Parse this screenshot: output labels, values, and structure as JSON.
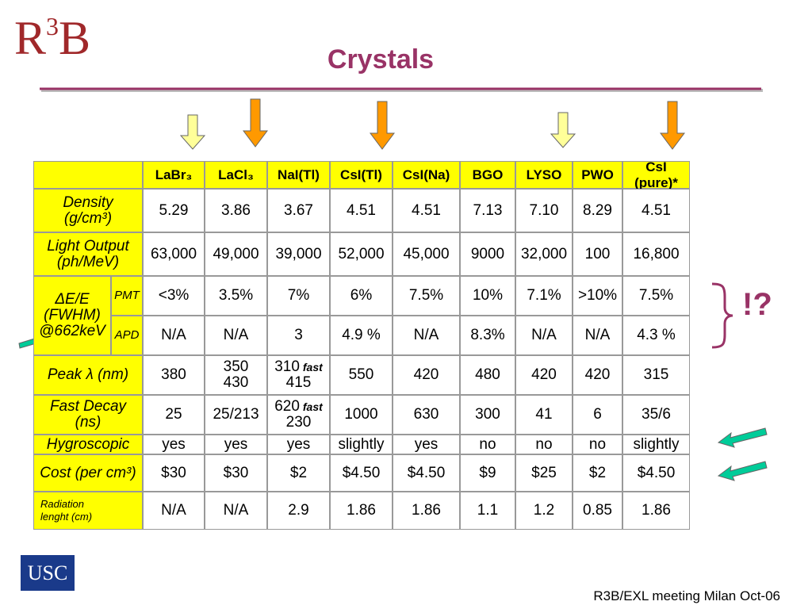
{
  "header": {
    "logo": [
      "R",
      "3",
      "B"
    ],
    "title": "Crystals"
  },
  "table": {
    "columns": [
      "LaBr₃",
      "LaCl₃",
      "NaI(Tl)",
      "CsI(Tl)",
      "CsI(Na)",
      "BGO",
      "LYSO",
      "PWO",
      "CsI (pure)*"
    ],
    "rows": [
      {
        "label": [
          "Density",
          "(g/cm³)"
        ],
        "cells": [
          "5.29",
          "3.86",
          "3.67",
          "4.51",
          "4.51",
          "7.13",
          "7.10",
          "8.29",
          "4.51"
        ]
      },
      {
        "label": [
          "Light Output",
          "(ph/MeV)"
        ],
        "cells": [
          "63,000",
          "49,000",
          "39,000",
          "52,000",
          "45,000",
          "9000",
          "32,000",
          "100",
          "16,800"
        ]
      },
      {
        "label": [
          "ΔE/E",
          "(FWHM)",
          "@662keV"
        ],
        "sub": "PMT",
        "cells": [
          "<3%",
          "3.5%",
          "7%",
          "6%",
          "7.5%",
          "10%",
          "7.1%",
          ">10%",
          "7.5%"
        ]
      },
      {
        "sub": "APD",
        "cells": [
          "N/A",
          "N/A",
          "3",
          "4.9 %",
          "N/A",
          "8.3%",
          "N/A",
          "N/A",
          "4.3 %"
        ]
      },
      {
        "label": [
          "Peak λ (nm)"
        ],
        "cells": [
          "380",
          [
            "350",
            "430"
          ],
          [
            {
              "text": "310",
              "em": "fast"
            },
            "415"
          ],
          "550",
          "420",
          "480",
          "420",
          "420",
          "315"
        ]
      },
      {
        "label": [
          "Fast Decay",
          "(ns)"
        ],
        "cells": [
          "25",
          "25/213",
          [
            {
              "text": "620",
              "em": "fast"
            },
            "230"
          ],
          "1000",
          "630",
          "300",
          "41",
          "6",
          "35/6"
        ]
      },
      {
        "label": [
          "Hygroscopic"
        ],
        "cells": [
          "yes",
          "yes",
          "yes",
          "slightly",
          "yes",
          "no",
          "no",
          "no",
          "slightly"
        ]
      },
      {
        "label": [
          "Cost (per cm³)"
        ],
        "cells": [
          "$30",
          "$30",
          "$2",
          "$4.50",
          "$4.50",
          "$9",
          "$25",
          "$2",
          "$4.50"
        ]
      },
      {
        "label": [
          "Radiation",
          "lenght (cm)"
        ],
        "cells": [
          "N/A",
          "N/A",
          "2.9",
          "1.86",
          "1.86",
          "1.1",
          "1.2",
          "0.85",
          "1.86"
        ]
      }
    ]
  },
  "annotation": "!?",
  "footer": {
    "logo": "USC",
    "note": "R3B/EXL meeting Milan Oct-06"
  }
}
